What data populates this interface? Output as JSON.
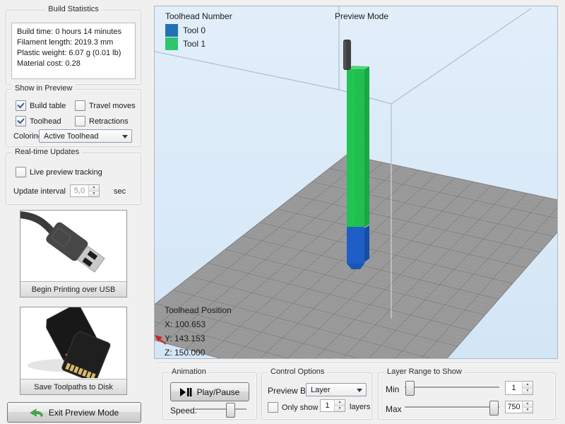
{
  "left_panel": {
    "build_statistics": {
      "title": "Build Statistics",
      "lines": [
        "Build time: 0 hours 14 minutes",
        "Filament length: 2019.3 mm",
        "Plastic weight: 6.07 g (0.01 lb)",
        "Material cost: 0.28"
      ]
    },
    "show_in_preview": {
      "title": "Show in Preview",
      "build_table": {
        "label": "Build table",
        "checked": true
      },
      "travel_moves": {
        "label": "Travel moves",
        "checked": false
      },
      "toolhead": {
        "label": "Toolhead",
        "checked": true
      },
      "retractions": {
        "label": "Retractions",
        "checked": false
      },
      "coloring_label": "Coloring",
      "coloring_value": "Active Toolhead"
    },
    "realtime_updates": {
      "title": "Real-time Updates",
      "live_preview": {
        "label": "Live preview tracking",
        "checked": false
      },
      "update_interval_label": "Update interval",
      "update_interval_value": "5,0",
      "update_interval_unit": "sec"
    },
    "usb_button_label": "Begin Printing over USB",
    "disk_button_label": "Save Toolpaths to Disk",
    "exit_button_label": "Exit Preview Mode"
  },
  "viewport": {
    "legend_title": "Toolhead Number",
    "legend_items": [
      {
        "label": "Tool 0",
        "color": "#2470b6"
      },
      {
        "label": "Tool 1",
        "color": "#2fc56d"
      }
    ],
    "mode_label": "Preview Mode",
    "toolhead_position": {
      "title": "Toolhead Position",
      "x": "X: 100.653",
      "y": "Y: 143.153",
      "z": "Z: 150.000"
    }
  },
  "bottom_bar": {
    "animation": {
      "title": "Animation",
      "play_pause_label": "Play/Pause",
      "speed_label": "Speed:"
    },
    "control_options": {
      "title": "Control Options",
      "preview_by_label": "Preview By",
      "preview_by_value": "Layer",
      "only_show": {
        "label": "Only show",
        "checked": false
      },
      "only_show_value": "1",
      "layers_label": "layers"
    },
    "layer_range": {
      "title": "Layer Range to Show",
      "min_label": "Min",
      "min_value": "1",
      "max_label": "Max",
      "max_value": "750"
    }
  },
  "scene": {
    "sky_color": "#d9e9f7",
    "plate_color": "#9b9b9b",
    "tower": {
      "green_front": "#21c352",
      "green_side": "#18a844",
      "green_top": "#55d380",
      "blue_front": "#1e5ec6",
      "blue_side": "#164ea6",
      "blue_bottom": "#1c55b2",
      "toolhead_pin": "#3f3f3f"
    }
  }
}
